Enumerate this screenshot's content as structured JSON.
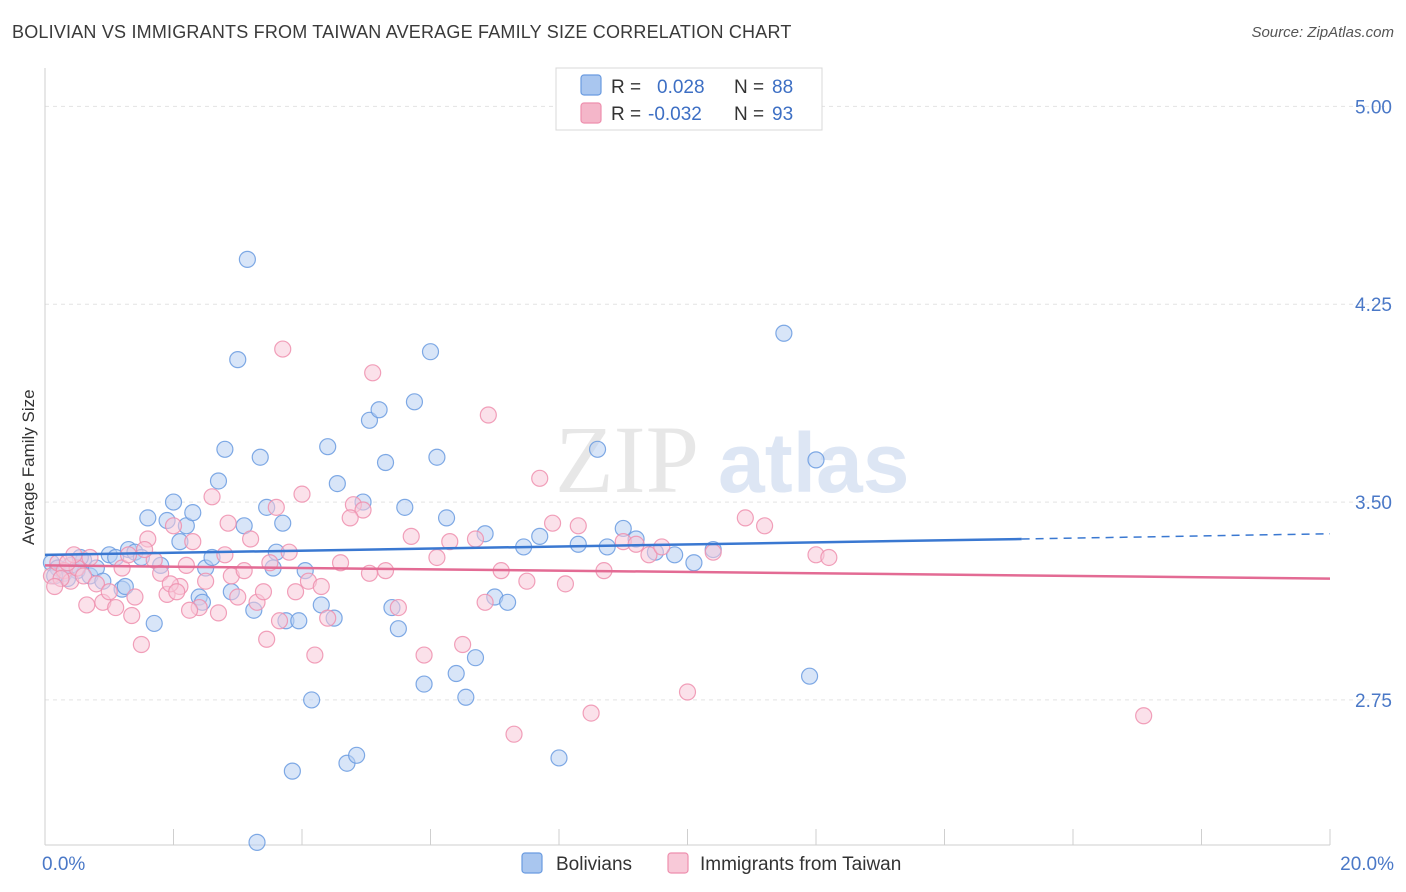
{
  "header": {
    "title": "BOLIVIAN VS IMMIGRANTS FROM TAIWAN AVERAGE FAMILY SIZE CORRELATION CHART",
    "source": "Source: ZipAtlas.com"
  },
  "watermark": {
    "part1": "ZIP",
    "part2": "atlas"
  },
  "legend_box": {
    "rows": [
      {
        "r_label": "R =",
        "r_value": "0.028",
        "n_label": "N =",
        "n_value": "88",
        "color": "#a9c6ef"
      },
      {
        "r_label": "R =",
        "r_value": "-0.032",
        "n_label": "N =",
        "n_value": "93",
        "color": "#f4b6c9"
      }
    ]
  },
  "chart_data": {
    "type": "scatter",
    "title": "BOLIVIAN VS IMMIGRANTS FROM TAIWAN AVERAGE FAMILY SIZE CORRELATION CHART",
    "xlabel": "",
    "ylabel": "Average Family Size",
    "xlim": [
      0,
      20
    ],
    "ylim": [
      2.2,
      5.1
    ],
    "x_tick_labels": [
      "0.0%",
      "20.0%"
    ],
    "y_ticks": [
      2.75,
      3.5,
      4.25,
      5.0
    ],
    "y_tick_labels": [
      "2.75",
      "3.50",
      "4.25",
      "5.00"
    ],
    "grid": "horizontal dashed",
    "legend_position": "top-center",
    "series": [
      {
        "name": "Bolivians",
        "color": "#6a9be0",
        "fill": "#b8d0f2",
        "trend": {
          "x0": 0,
          "y0": 3.3,
          "x1": 15.2,
          "y1": 3.36,
          "dashed_to": 20,
          "dashed_y": 3.38
        },
        "points": [
          [
            0.1,
            3.27
          ],
          [
            0.2,
            3.25
          ],
          [
            0.3,
            3.23
          ],
          [
            0.4,
            3.26
          ],
          [
            0.5,
            3.24
          ],
          [
            0.6,
            3.28
          ],
          [
            0.7,
            3.22
          ],
          [
            0.8,
            3.25
          ],
          [
            0.9,
            3.2
          ],
          [
            1.0,
            3.3
          ],
          [
            1.1,
            3.29
          ],
          [
            1.2,
            3.17
          ],
          [
            1.3,
            3.32
          ],
          [
            1.4,
            3.31
          ],
          [
            1.5,
            3.29
          ],
          [
            1.6,
            3.44
          ],
          [
            1.7,
            3.04
          ],
          [
            1.8,
            3.26
          ],
          [
            1.9,
            3.43
          ],
          [
            2.0,
            3.5
          ],
          [
            2.1,
            3.35
          ],
          [
            2.2,
            3.41
          ],
          [
            2.3,
            3.46
          ],
          [
            2.4,
            3.14
          ],
          [
            2.5,
            3.25
          ],
          [
            2.6,
            3.29
          ],
          [
            2.7,
            3.58
          ],
          [
            2.8,
            3.7
          ],
          [
            2.9,
            3.16
          ],
          [
            3.0,
            4.04
          ],
          [
            3.1,
            3.41
          ],
          [
            3.15,
            4.42
          ],
          [
            3.25,
            3.09
          ],
          [
            3.35,
            3.67
          ],
          [
            3.45,
            3.48
          ],
          [
            3.55,
            3.25
          ],
          [
            3.6,
            3.31
          ],
          [
            3.7,
            3.42
          ],
          [
            3.75,
            3.05
          ],
          [
            3.85,
            2.48
          ],
          [
            3.95,
            3.05
          ],
          [
            4.05,
            3.24
          ],
          [
            4.15,
            2.75
          ],
          [
            4.3,
            3.11
          ],
          [
            4.4,
            3.71
          ],
          [
            4.55,
            3.57
          ],
          [
            4.7,
            2.51
          ],
          [
            4.85,
            2.54
          ],
          [
            4.95,
            3.5
          ],
          [
            5.05,
            3.81
          ],
          [
            5.2,
            3.85
          ],
          [
            5.3,
            3.65
          ],
          [
            5.4,
            3.1
          ],
          [
            5.5,
            3.02
          ],
          [
            5.6,
            3.48
          ],
          [
            5.75,
            3.88
          ],
          [
            5.9,
            2.81
          ],
          [
            6.0,
            4.07
          ],
          [
            6.1,
            3.67
          ],
          [
            6.25,
            3.44
          ],
          [
            6.4,
            2.85
          ],
          [
            6.55,
            2.76
          ],
          [
            6.7,
            2.91
          ],
          [
            6.85,
            3.38
          ],
          [
            7.0,
            3.14
          ],
          [
            7.2,
            3.12
          ],
          [
            7.45,
            3.33
          ],
          [
            7.7,
            3.37
          ],
          [
            8.0,
            2.53
          ],
          [
            8.3,
            3.34
          ],
          [
            8.6,
            3.7
          ],
          [
            8.75,
            3.33
          ],
          [
            9.0,
            3.4
          ],
          [
            9.2,
            3.36
          ],
          [
            9.5,
            3.31
          ],
          [
            9.8,
            3.3
          ],
          [
            10.1,
            3.27
          ],
          [
            10.4,
            3.32
          ],
          [
            11.9,
            2.84
          ],
          [
            12.0,
            3.66
          ],
          [
            11.5,
            4.14
          ],
          [
            3.3,
            2.21
          ],
          [
            2.45,
            3.12
          ],
          [
            1.25,
            3.18
          ],
          [
            0.55,
            3.29
          ],
          [
            0.35,
            3.21
          ],
          [
            0.15,
            3.22
          ],
          [
            4.5,
            3.06
          ]
        ]
      },
      {
        "name": "Immigrants from Taiwan",
        "color": "#ee8fae",
        "fill": "#f8c9d8",
        "trend": {
          "x0": 0,
          "y0": 3.26,
          "x1": 20,
          "y1": 3.21
        },
        "points": [
          [
            0.1,
            3.22
          ],
          [
            0.2,
            3.27
          ],
          [
            0.3,
            3.24
          ],
          [
            0.4,
            3.2
          ],
          [
            0.5,
            3.25
          ],
          [
            0.6,
            3.22
          ],
          [
            0.7,
            3.29
          ],
          [
            0.8,
            3.19
          ],
          [
            0.9,
            3.12
          ],
          [
            1.0,
            3.16
          ],
          [
            1.1,
            3.1
          ],
          [
            1.2,
            3.25
          ],
          [
            1.3,
            3.3
          ],
          [
            1.4,
            3.14
          ],
          [
            1.5,
            2.96
          ],
          [
            1.6,
            3.36
          ],
          [
            1.7,
            3.28
          ],
          [
            1.8,
            3.23
          ],
          [
            1.9,
            3.15
          ],
          [
            2.0,
            3.41
          ],
          [
            2.1,
            3.18
          ],
          [
            2.2,
            3.26
          ],
          [
            2.3,
            3.35
          ],
          [
            2.4,
            3.1
          ],
          [
            2.5,
            3.2
          ],
          [
            2.6,
            3.52
          ],
          [
            2.7,
            3.08
          ],
          [
            2.8,
            3.3
          ],
          [
            2.9,
            3.22
          ],
          [
            3.0,
            3.14
          ],
          [
            3.1,
            3.24
          ],
          [
            3.2,
            3.36
          ],
          [
            3.3,
            3.12
          ],
          [
            3.4,
            3.16
          ],
          [
            3.5,
            3.27
          ],
          [
            3.6,
            3.48
          ],
          [
            3.7,
            4.08
          ],
          [
            3.8,
            3.31
          ],
          [
            3.9,
            3.16
          ],
          [
            4.0,
            3.53
          ],
          [
            4.1,
            3.2
          ],
          [
            4.2,
            2.92
          ],
          [
            4.3,
            3.18
          ],
          [
            4.4,
            3.06
          ],
          [
            4.6,
            3.27
          ],
          [
            4.8,
            3.49
          ],
          [
            4.95,
            3.47
          ],
          [
            5.1,
            3.99
          ],
          [
            5.3,
            3.24
          ],
          [
            5.5,
            3.1
          ],
          [
            5.7,
            3.37
          ],
          [
            5.9,
            2.92
          ],
          [
            6.1,
            3.29
          ],
          [
            6.3,
            3.35
          ],
          [
            6.5,
            2.96
          ],
          [
            6.7,
            3.36
          ],
          [
            6.9,
            3.83
          ],
          [
            7.1,
            3.24
          ],
          [
            7.3,
            2.62
          ],
          [
            7.5,
            3.2
          ],
          [
            7.7,
            3.59
          ],
          [
            7.9,
            3.42
          ],
          [
            8.1,
            3.19
          ],
          [
            8.3,
            3.41
          ],
          [
            8.5,
            2.7
          ],
          [
            8.7,
            3.24
          ],
          [
            9.0,
            3.35
          ],
          [
            9.2,
            3.34
          ],
          [
            9.4,
            3.3
          ],
          [
            9.6,
            3.33
          ],
          [
            10.0,
            2.78
          ],
          [
            10.4,
            3.31
          ],
          [
            10.9,
            3.44
          ],
          [
            11.2,
            3.41
          ],
          [
            12.0,
            3.3
          ],
          [
            12.2,
            3.29
          ],
          [
            17.1,
            2.69
          ],
          [
            3.65,
            3.05
          ],
          [
            2.25,
            3.09
          ],
          [
            1.35,
            3.07
          ],
          [
            0.65,
            3.11
          ],
          [
            0.45,
            3.3
          ],
          [
            0.25,
            3.21
          ],
          [
            1.95,
            3.19
          ],
          [
            2.85,
            3.42
          ],
          [
            3.45,
            2.98
          ],
          [
            6.85,
            3.12
          ],
          [
            5.05,
            3.23
          ],
          [
            4.75,
            3.44
          ],
          [
            1.55,
            3.32
          ],
          [
            2.05,
            3.16
          ],
          [
            0.15,
            3.18
          ],
          [
            0.35,
            3.27
          ]
        ]
      }
    ]
  },
  "bottom_legend": {
    "items": [
      {
        "label": "Bolivians",
        "color": "#a9c6ef",
        "border": "#6a9be0"
      },
      {
        "label": "Immigrants from Taiwan",
        "color": "#f8c9d8",
        "border": "#ee8fae"
      }
    ]
  }
}
